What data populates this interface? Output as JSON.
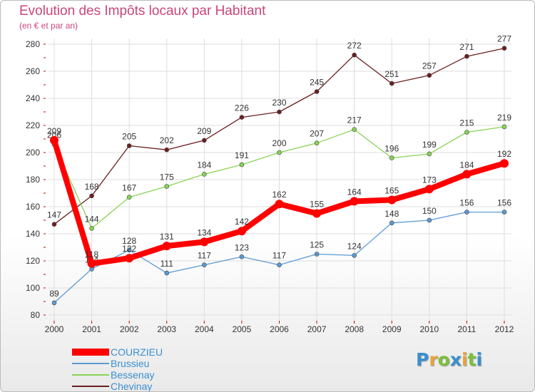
{
  "title": "Evolution des Impôts locaux par Habitant",
  "subtitle": "(en € et par an)",
  "logo": {
    "letters": [
      "P",
      "r",
      "o",
      "x",
      "i",
      "t",
      "i"
    ],
    "colors": [
      "#3a8fd0",
      "#e8a33a",
      "#7bbf3a",
      "#3a8fd0",
      "#e8a33a",
      "#7bbf3a",
      "#3a8fd0"
    ]
  },
  "chart_data": {
    "type": "line",
    "title": "Evolution des Impôts locaux par Habitant",
    "ylabel": "(en € et par an)",
    "xlabel": "",
    "categories": [
      "2000",
      "2001",
      "2002",
      "2003",
      "2004",
      "2005",
      "2006",
      "2007",
      "2008",
      "2009",
      "2010",
      "2011",
      "2012"
    ],
    "ylim": [
      80,
      280
    ],
    "yticks": [
      80,
      100,
      120,
      140,
      160,
      180,
      200,
      220,
      240,
      260,
      280
    ],
    "grid": true,
    "legend_position": "bottom-left",
    "series": [
      {
        "name": "COURZIEU",
        "color": "#ff0000",
        "values": [
          209,
          118,
          122,
          131,
          134,
          142,
          162,
          155,
          164,
          165,
          173,
          184,
          192
        ]
      },
      {
        "name": "Brussieu",
        "color": "#5b9bd5",
        "values": [
          89,
          114,
          128,
          111,
          117,
          123,
          117,
          125,
          124,
          148,
          150,
          156,
          156
        ]
      },
      {
        "name": "Bessenay",
        "color": "#88d454",
        "values": [
          206,
          144,
          167,
          175,
          184,
          191,
          200,
          207,
          217,
          196,
          199,
          215,
          219
        ]
      },
      {
        "name": "Chevinay",
        "color": "#6b1f1f",
        "values": [
          147,
          168,
          205,
          202,
          209,
          226,
          230,
          245,
          272,
          251,
          257,
          271,
          277
        ]
      }
    ]
  }
}
